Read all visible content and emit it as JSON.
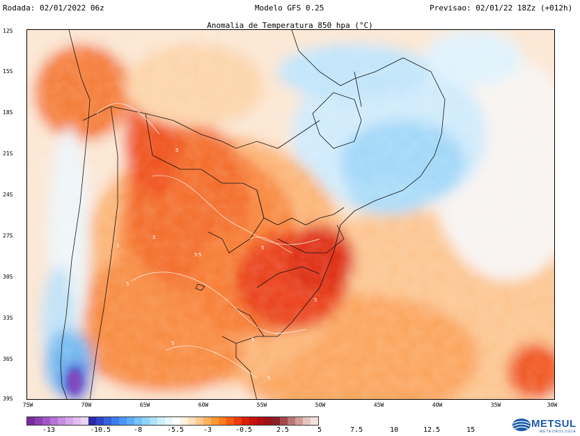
{
  "header": {
    "run": "Rodada: 02/01/2022 06z",
    "model": "Modelo GFS 0.25",
    "forecast": "Previsao: 02/01/22 18Zz (+012h)",
    "title": "Anomalia de Temperatura 850 hpa (°C)"
  },
  "map": {
    "lat_labels": [
      "12S",
      "15S",
      "18S",
      "21S",
      "24S",
      "27S",
      "30S",
      "33S",
      "36S",
      "39S"
    ],
    "lon_labels": [
      "75W",
      "70W",
      "65W",
      "60W",
      "55W",
      "50W",
      "45W",
      "40W",
      "35W",
      "30W"
    ],
    "contour_labels": [
      "5",
      "5",
      "5",
      "5",
      "5",
      "5",
      "5",
      "5",
      "5",
      "5",
      "5"
    ]
  },
  "colorbar": {
    "labels": [
      "-13",
      "-10.5",
      "-8",
      "-5.5",
      "-3",
      "-0.5",
      "2.5",
      "5",
      "7.5",
      "10",
      "12.5",
      "15"
    ],
    "colors": [
      "#7a2d9e",
      "#8e3fb2",
      "#a257c4",
      "#b672d4",
      "#c88ce0",
      "#d7a6ea",
      "#e2bff0",
      "#ebd5f5",
      "#2a2aa8",
      "#2f45c6",
      "#3561dc",
      "#3f7ded",
      "#4b96f5",
      "#5cadf8",
      "#74c2fa",
      "#8fd4fb",
      "#aee2fb",
      "#cdeefc",
      "#e6f7fd",
      "#ffffff",
      "#fff3e0",
      "#ffe0bb",
      "#ffcb8c",
      "#ffb35c",
      "#ff9a35",
      "#ff7d1e",
      "#f75a12",
      "#ec3a0c",
      "#de1f0b",
      "#c8120d",
      "#b10d12",
      "#99121a",
      "#8a2027",
      "#a14a4e",
      "#bb7676",
      "#d29e9b",
      "#e6c4c0",
      "#f4e2dd"
    ]
  },
  "logo": {
    "name": "METSUL",
    "subtitle": "METEOROLOGIA"
  }
}
